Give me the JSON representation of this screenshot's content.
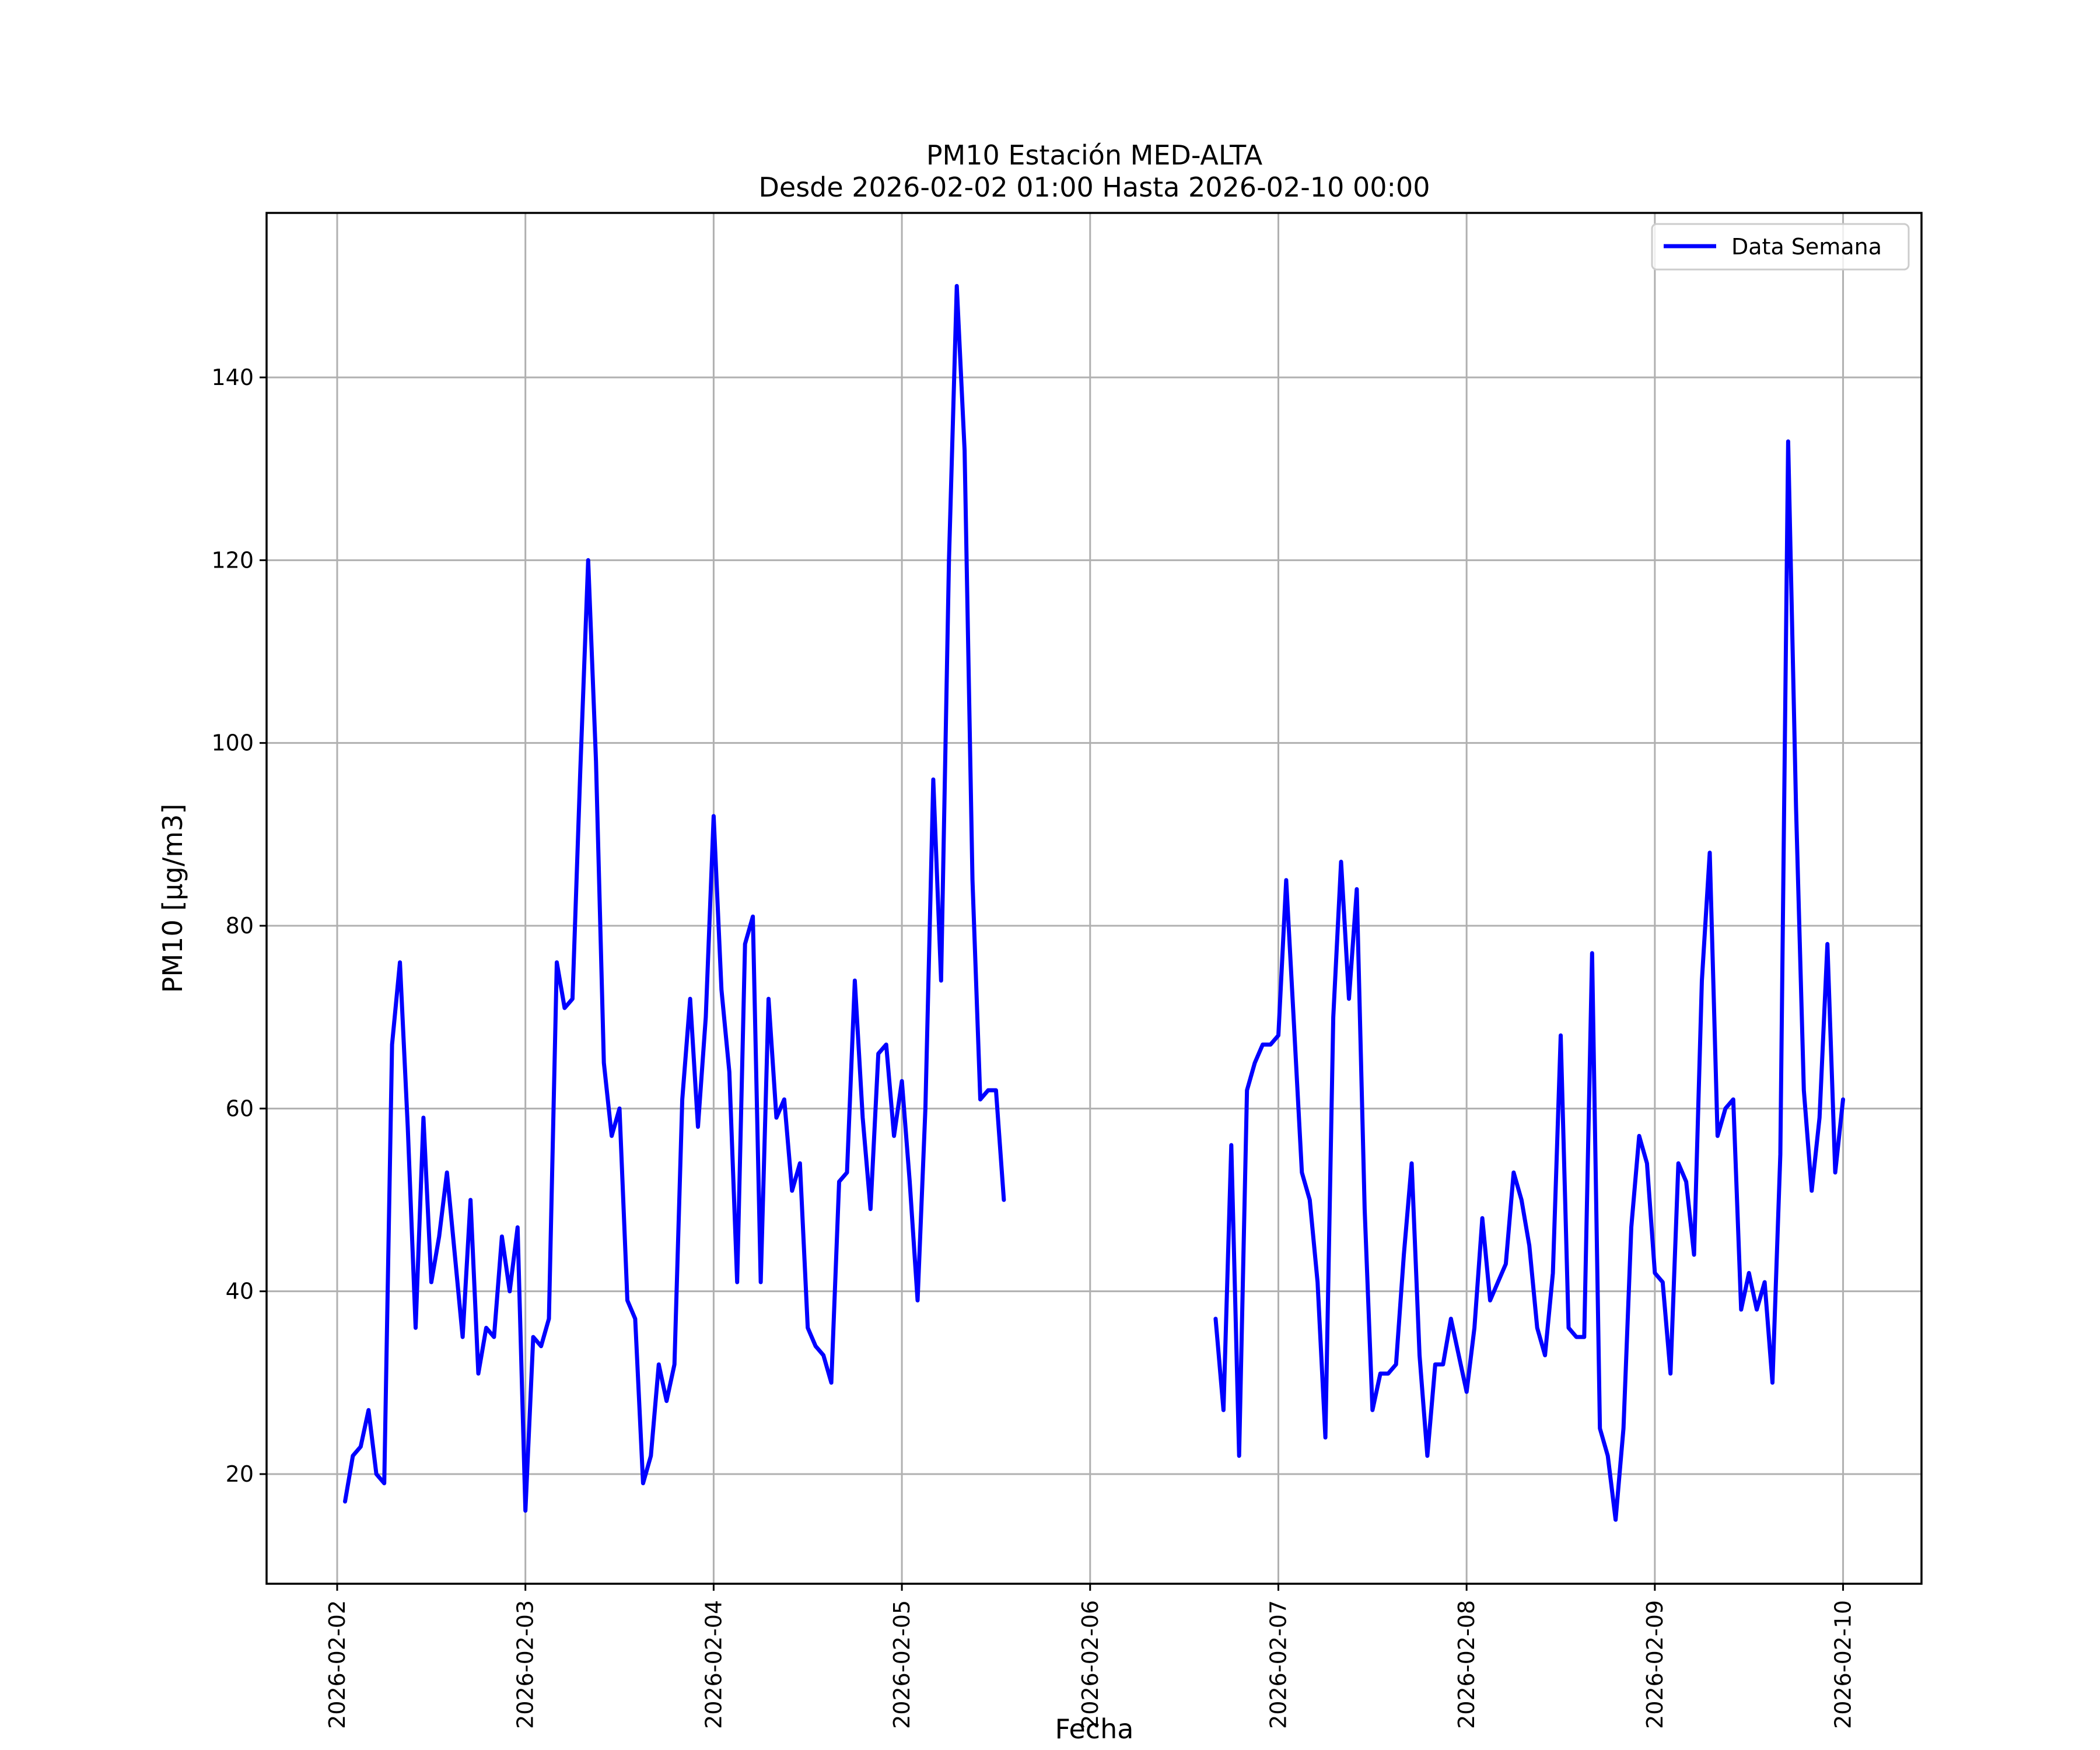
{
  "chart_data": {
    "type": "line",
    "title": "PM10 Estación MED-ALTA",
    "subtitle": "Desde 2026-02-02 01:00 Hasta 2026-02-10 00:00",
    "xlabel": "Fecha",
    "ylabel": "PM10 [μg/m3]",
    "grid": true,
    "legend_position": "top-right",
    "xlim": [
      "2026-02-01 15:00",
      "2026-02-10 10:00"
    ],
    "ylim": [
      8,
      158
    ],
    "x_ticks": [
      "2026-02-02",
      "2026-02-03",
      "2026-02-04",
      "2026-02-05",
      "2026-02-06",
      "2026-02-07",
      "2026-02-08",
      "2026-02-09",
      "2026-02-10"
    ],
    "y_ticks": [
      20,
      40,
      60,
      80,
      100,
      120,
      140
    ],
    "colors": {
      "series": "#0000ff",
      "grid": "#b0b0b0"
    },
    "series": [
      {
        "name": "Data Semana",
        "color": "#0000ff",
        "segments": [
          {
            "x": [
              "2026-02-02 01:00",
              "2026-02-02 02:00",
              "2026-02-02 03:00",
              "2026-02-02 04:00",
              "2026-02-02 05:00",
              "2026-02-02 06:00",
              "2026-02-02 07:00",
              "2026-02-02 08:00",
              "2026-02-02 09:00",
              "2026-02-02 10:00",
              "2026-02-02 11:00",
              "2026-02-02 12:00",
              "2026-02-02 13:00",
              "2026-02-02 14:00",
              "2026-02-02 15:00",
              "2026-02-02 16:00",
              "2026-02-02 17:00",
              "2026-02-02 18:00",
              "2026-02-02 19:00",
              "2026-02-02 20:00",
              "2026-02-02 21:00",
              "2026-02-02 22:00",
              "2026-02-02 23:00",
              "2026-02-03 00:00",
              "2026-02-03 01:00",
              "2026-02-03 02:00",
              "2026-02-03 03:00",
              "2026-02-03 04:00",
              "2026-02-03 05:00",
              "2026-02-03 06:00",
              "2026-02-03 07:00",
              "2026-02-03 08:00",
              "2026-02-03 09:00",
              "2026-02-03 10:00",
              "2026-02-03 11:00",
              "2026-02-03 12:00",
              "2026-02-03 13:00",
              "2026-02-03 14:00",
              "2026-02-03 15:00",
              "2026-02-03 16:00",
              "2026-02-03 17:00",
              "2026-02-03 18:00",
              "2026-02-03 19:00",
              "2026-02-03 20:00",
              "2026-02-03 21:00",
              "2026-02-03 22:00",
              "2026-02-03 23:00",
              "2026-02-04 00:00",
              "2026-02-04 01:00",
              "2026-02-04 02:00",
              "2026-02-04 03:00",
              "2026-02-04 04:00",
              "2026-02-04 05:00",
              "2026-02-04 06:00",
              "2026-02-04 07:00",
              "2026-02-04 08:00",
              "2026-02-04 09:00",
              "2026-02-04 10:00",
              "2026-02-04 11:00",
              "2026-02-04 12:00",
              "2026-02-04 13:00",
              "2026-02-04 14:00",
              "2026-02-04 15:00",
              "2026-02-04 16:00",
              "2026-02-04 17:00",
              "2026-02-04 18:00",
              "2026-02-04 19:00",
              "2026-02-04 20:00",
              "2026-02-04 21:00",
              "2026-02-04 22:00",
              "2026-02-04 23:00",
              "2026-02-05 00:00",
              "2026-02-05 01:00",
              "2026-02-05 02:00",
              "2026-02-05 03:00",
              "2026-02-05 04:00",
              "2026-02-05 05:00",
              "2026-02-05 06:00",
              "2026-02-05 07:00",
              "2026-02-05 08:00",
              "2026-02-05 09:00",
              "2026-02-05 10:00",
              "2026-02-05 11:00",
              "2026-02-05 12:00",
              "2026-02-05 13:00"
            ],
            "y": [
              17,
              22,
              23,
              27,
              20,
              19,
              67,
              76,
              58,
              36,
              59,
              41,
              46,
              53,
              44,
              35,
              50,
              31,
              36,
              35,
              46,
              40,
              47,
              16,
              35,
              34,
              37,
              76,
              71,
              72,
              97,
              120,
              98,
              65,
              57,
              60,
              39,
              37,
              19,
              22,
              32,
              28,
              32,
              61,
              72,
              58,
              70,
              92,
              73,
              64,
              41,
              78,
              81,
              41,
              72,
              59,
              61,
              51,
              54,
              36,
              34,
              33,
              30,
              52,
              53,
              74,
              59,
              49,
              66,
              67,
              57,
              63,
              52,
              39,
              60,
              96,
              74,
              120,
              150,
              132,
              85,
              61,
              62,
              62,
              50
            ]
          },
          {
            "x": [
              "2026-02-06 16:00",
              "2026-02-06 17:00",
              "2026-02-06 18:00",
              "2026-02-06 19:00",
              "2026-02-06 20:00",
              "2026-02-06 21:00",
              "2026-02-06 22:00",
              "2026-02-06 23:00",
              "2026-02-07 00:00",
              "2026-02-07 01:00",
              "2026-02-07 02:00",
              "2026-02-07 03:00",
              "2026-02-07 04:00",
              "2026-02-07 05:00",
              "2026-02-07 06:00",
              "2026-02-07 07:00",
              "2026-02-07 08:00",
              "2026-02-07 09:00",
              "2026-02-07 10:00",
              "2026-02-07 11:00",
              "2026-02-07 12:00",
              "2026-02-07 13:00",
              "2026-02-07 14:00",
              "2026-02-07 15:00",
              "2026-02-07 16:00",
              "2026-02-07 17:00",
              "2026-02-07 18:00",
              "2026-02-07 19:00",
              "2026-02-07 20:00",
              "2026-02-07 21:00",
              "2026-02-07 22:00",
              "2026-02-07 23:00",
              "2026-02-08 00:00",
              "2026-02-08 01:00",
              "2026-02-08 02:00",
              "2026-02-08 03:00",
              "2026-02-08 04:00",
              "2026-02-08 05:00",
              "2026-02-08 06:00",
              "2026-02-08 07:00",
              "2026-02-08 08:00",
              "2026-02-08 09:00",
              "2026-02-08 10:00",
              "2026-02-08 11:00",
              "2026-02-08 12:00",
              "2026-02-08 13:00",
              "2026-02-08 14:00",
              "2026-02-08 15:00",
              "2026-02-08 16:00",
              "2026-02-08 17:00",
              "2026-02-08 18:00",
              "2026-02-08 19:00",
              "2026-02-08 20:00",
              "2026-02-08 21:00",
              "2026-02-08 22:00",
              "2026-02-08 23:00",
              "2026-02-09 00:00",
              "2026-02-09 01:00",
              "2026-02-09 02:00",
              "2026-02-09 03:00",
              "2026-02-09 04:00",
              "2026-02-09 05:00",
              "2026-02-09 06:00",
              "2026-02-09 07:00",
              "2026-02-09 08:00",
              "2026-02-09 09:00",
              "2026-02-09 10:00",
              "2026-02-09 11:00",
              "2026-02-09 12:00",
              "2026-02-09 13:00",
              "2026-02-09 14:00",
              "2026-02-09 15:00",
              "2026-02-09 16:00",
              "2026-02-09 17:00",
              "2026-02-09 18:00",
              "2026-02-09 19:00",
              "2026-02-09 20:00",
              "2026-02-09 21:00",
              "2026-02-09 22:00",
              "2026-02-09 23:00",
              "2026-02-10 00:00"
            ],
            "y": [
              37,
              27,
              56,
              22,
              62,
              65,
              67,
              67,
              68,
              85,
              69,
              53,
              50,
              41,
              24,
              70,
              87,
              72,
              84,
              49,
              27,
              31,
              31,
              32,
              44,
              54,
              33,
              22,
              32,
              32,
              37,
              33,
              29,
              36,
              48,
              39,
              41,
              43,
              53,
              50,
              45,
              36,
              33,
              42,
              68,
              36,
              35,
              35,
              77,
              25,
              22,
              15,
              25,
              47,
              57,
              54,
              42,
              41,
              31,
              54,
              52,
              44,
              74,
              88,
              57,
              60,
              61,
              38,
              42,
              38,
              41,
              30,
              55,
              133,
              93,
              62,
              51,
              59,
              78,
              53,
              61
            ]
          }
        ]
      }
    ]
  }
}
